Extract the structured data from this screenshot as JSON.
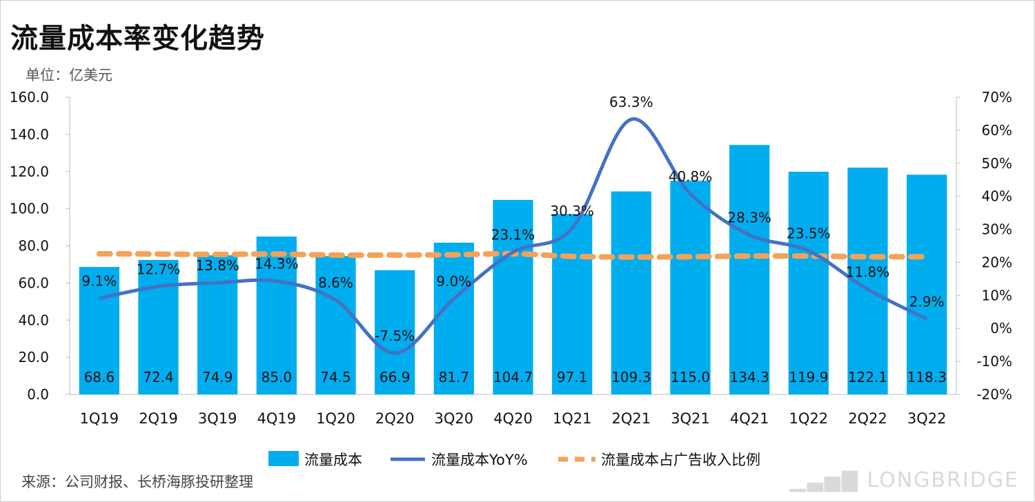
{
  "title": "流量成本率变化趋势",
  "unit": "单位：亿美元",
  "source": "来源：公司财报、长桥海豚投研整理",
  "watermark": "LONGBRIDGE",
  "chart_data": {
    "type": "bar+line",
    "categories": [
      "1Q19",
      "2Q19",
      "3Q19",
      "4Q19",
      "1Q20",
      "2Q20",
      "3Q20",
      "4Q20",
      "1Q21",
      "2Q21",
      "3Q21",
      "4Q21",
      "1Q22",
      "2Q22",
      "3Q22"
    ],
    "series": [
      {
        "name": "流量成本",
        "type": "bar",
        "axis": "left",
        "color": "#00ADEF",
        "values": [
          68.6,
          72.4,
          74.9,
          85.0,
          74.5,
          66.9,
          81.7,
          104.7,
          97.1,
          109.3,
          115.0,
          134.3,
          119.9,
          122.1,
          118.3
        ],
        "labels": [
          "68.6",
          "72.4",
          "74.9",
          "85.0",
          "74.5",
          "66.9",
          "81.7",
          "104.7",
          "97.1",
          "109.3",
          "115.0",
          "134.3",
          "119.9",
          "122.1",
          "118.3"
        ]
      },
      {
        "name": "流量成本YoY%",
        "type": "line",
        "axis": "right",
        "color": "#4472C4",
        "values": [
          9.1,
          12.7,
          13.8,
          14.3,
          8.6,
          -7.5,
          9.0,
          23.1,
          30.3,
          63.3,
          40.8,
          28.3,
          23.5,
          11.8,
          2.9
        ],
        "labels": [
          "9.1%",
          "12.7%",
          "13.8%",
          "14.3%",
          "8.6%",
          "-7.5%",
          "9.0%",
          "23.1%",
          "30.3%",
          "63.3%",
          "40.8%",
          "28.3%",
          "23.5%",
          "11.8%",
          "2.9%"
        ]
      },
      {
        "name": "流量成本占广告收入比例",
        "type": "line-dashed",
        "axis": "right",
        "color": "#F4A259",
        "values": [
          22.6,
          22.5,
          22.4,
          22.5,
          22.2,
          22.2,
          22.3,
          22.6,
          21.8,
          21.6,
          21.7,
          21.9,
          21.9,
          21.7,
          21.7
        ]
      }
    ],
    "left_axis": {
      "ylim": [
        0,
        160
      ],
      "ticks": [
        "0.0",
        "20.0",
        "40.0",
        "60.0",
        "80.0",
        "100.0",
        "120.0",
        "140.0",
        "160.0"
      ]
    },
    "right_axis": {
      "ylim": [
        -20,
        70
      ],
      "ticks": [
        "-20%",
        "-10%",
        "0%",
        "10%",
        "20%",
        "30%",
        "40%",
        "50%",
        "60%",
        "70%"
      ]
    },
    "legend": "bottom",
    "grid": false
  }
}
